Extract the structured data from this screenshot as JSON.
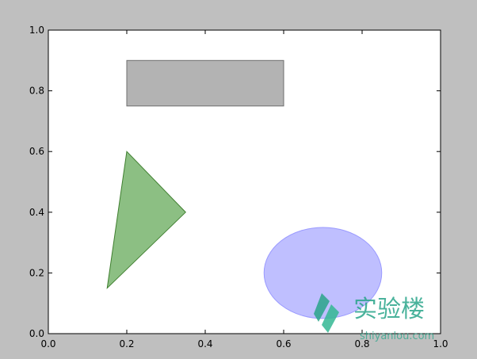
{
  "chart_data": {
    "type": "shapes",
    "xlim": [
      0.0,
      1.0
    ],
    "ylim": [
      0.0,
      1.0
    ],
    "xticks": [
      "0.0",
      "0.2",
      "0.4",
      "0.6",
      "0.8",
      "1.0"
    ],
    "yticks": [
      "0.0",
      "0.2",
      "0.4",
      "0.6",
      "0.8",
      "1.0"
    ],
    "grid": false,
    "shapes": [
      {
        "kind": "rectangle",
        "x": 0.2,
        "y": 0.75,
        "width": 0.4,
        "height": 0.15,
        "fill": "#808080",
        "alpha": 0.6,
        "edge": "#6f6f6f"
      },
      {
        "kind": "polygon",
        "points": [
          [
            0.15,
            0.15
          ],
          [
            0.35,
            0.4
          ],
          [
            0.2,
            0.6
          ]
        ],
        "fill": "#2e8b1e",
        "alpha": 0.55,
        "edge": "#3f7f2f"
      },
      {
        "kind": "ellipse",
        "center": [
          0.7,
          0.2
        ],
        "width": 0.3,
        "height": 0.3,
        "fill": "#8080ff",
        "alpha": 0.5,
        "edge": "#9a9aff"
      }
    ]
  },
  "watermark": {
    "text_cn": "实验楼",
    "text_en": "shiyanlou.com",
    "color": "#2aa58a"
  },
  "colors": {
    "figure_bg": "#bfbfbf",
    "axes_bg": "#ffffff",
    "axes_edge": "#000000"
  }
}
